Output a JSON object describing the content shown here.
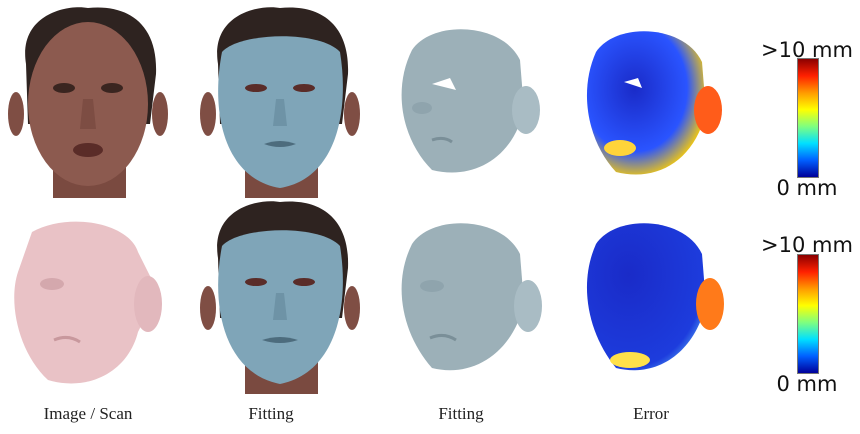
{
  "captions": [
    "Image / Scan",
    "Fitting",
    "Fitting",
    "Error"
  ],
  "colorbar": {
    "max_label": ">10 mm",
    "min_label": "0 mm",
    "gradient": [
      "#8b0000",
      "#ff2000",
      "#ff9a00",
      "#ffff00",
      "#7fff7f",
      "#00e0ff",
      "#0060ff",
      "#00009a"
    ]
  },
  "colors": {
    "skin": "#8c5a4f",
    "hair": "#2e2320",
    "mask": "#7fa5b8",
    "mesh": "#9cb0b8",
    "scan": "#e9c2c6",
    "error_bg": "#1a2bc8"
  }
}
